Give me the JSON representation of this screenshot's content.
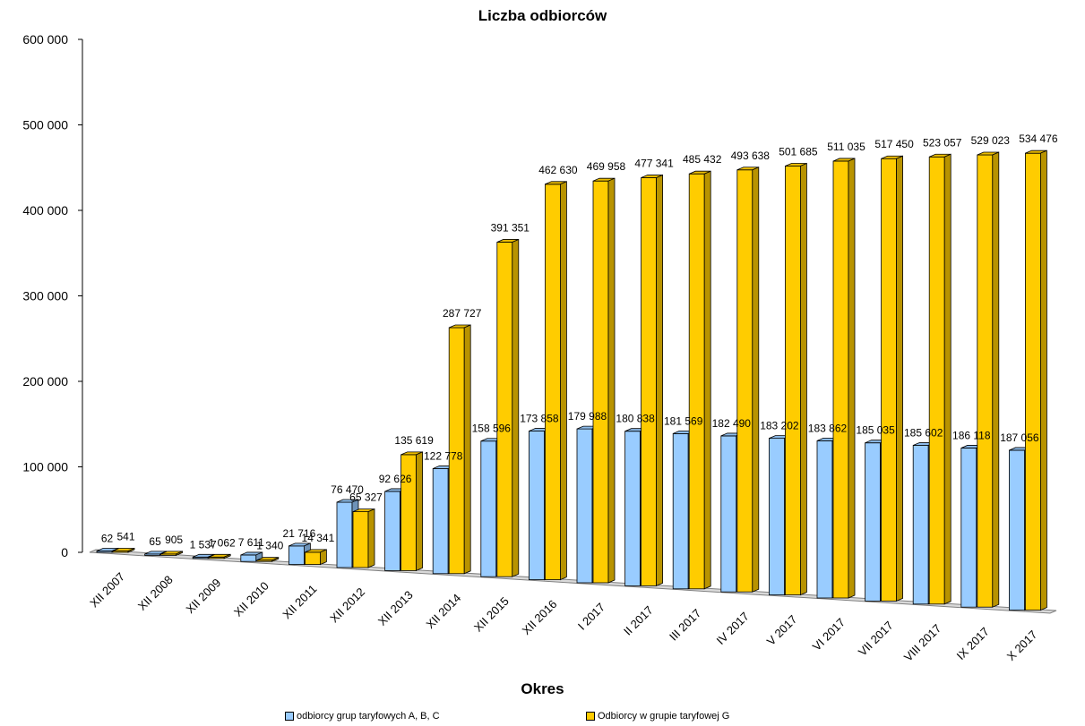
{
  "chart_data": {
    "type": "bar",
    "title": "Liczba odbiorców",
    "xlabel": "Okres",
    "ylabel": "",
    "ylim": [
      0,
      600000
    ],
    "yticks": [
      "0",
      "100 000",
      "200 000",
      "300 000",
      "400 000",
      "500 000",
      "600 000"
    ],
    "categories": [
      "XII 2007",
      "XII 2008",
      "XII 2009",
      "XII 2010",
      "XII 2011",
      "XII 2012",
      "XII 2013",
      "XII 2014",
      "XII 2015",
      "XII 2016",
      "I 2017",
      "II 2017",
      "III 2017",
      "IV 2017",
      "V 2017",
      "VI 2017",
      "VII 2017",
      "VIII 2017",
      "IX 2017",
      "X 2017"
    ],
    "series": [
      {
        "name": "odbiorcy grup taryfowych A, B, C",
        "color": "#99CCFF",
        "values": [
          62,
          65,
          1537,
          7611,
          21716,
          76470,
          92626,
          122778,
          158596,
          173858,
          179988,
          180838,
          181569,
          182490,
          183202,
          183862,
          185035,
          185602,
          186118,
          187056
        ],
        "labels": [
          "62",
          "65",
          "1 537",
          "7 611",
          "21 716",
          "76 470",
          "92 626",
          "122 778",
          "158 596",
          "173 858",
          "179 988",
          "180 838",
          "181 569",
          "182 490",
          "183 202",
          "183 862",
          "185 035",
          "185 602",
          "186 118",
          "187 056"
        ]
      },
      {
        "name": "Odbiorcy w grupie taryfowej G",
        "color": "#FFCC00",
        "values": [
          541,
          905,
          1062,
          1340,
          14341,
          65327,
          135619,
          287727,
          391351,
          462630,
          469958,
          477341,
          485432,
          493638,
          501685,
          511035,
          517450,
          523057,
          529023,
          534476
        ],
        "labels": [
          "541",
          "905",
          "1 062",
          "1 340",
          "14 341",
          "65 327",
          "135 619",
          "287 727",
          "391 351",
          "462 630",
          "469 958",
          "477 341",
          "485 432",
          "493 638",
          "501 685",
          "511 035",
          "517 450",
          "523 057",
          "529 023",
          "534 476"
        ]
      }
    ],
    "grid": false,
    "legend_position": "bottom"
  }
}
